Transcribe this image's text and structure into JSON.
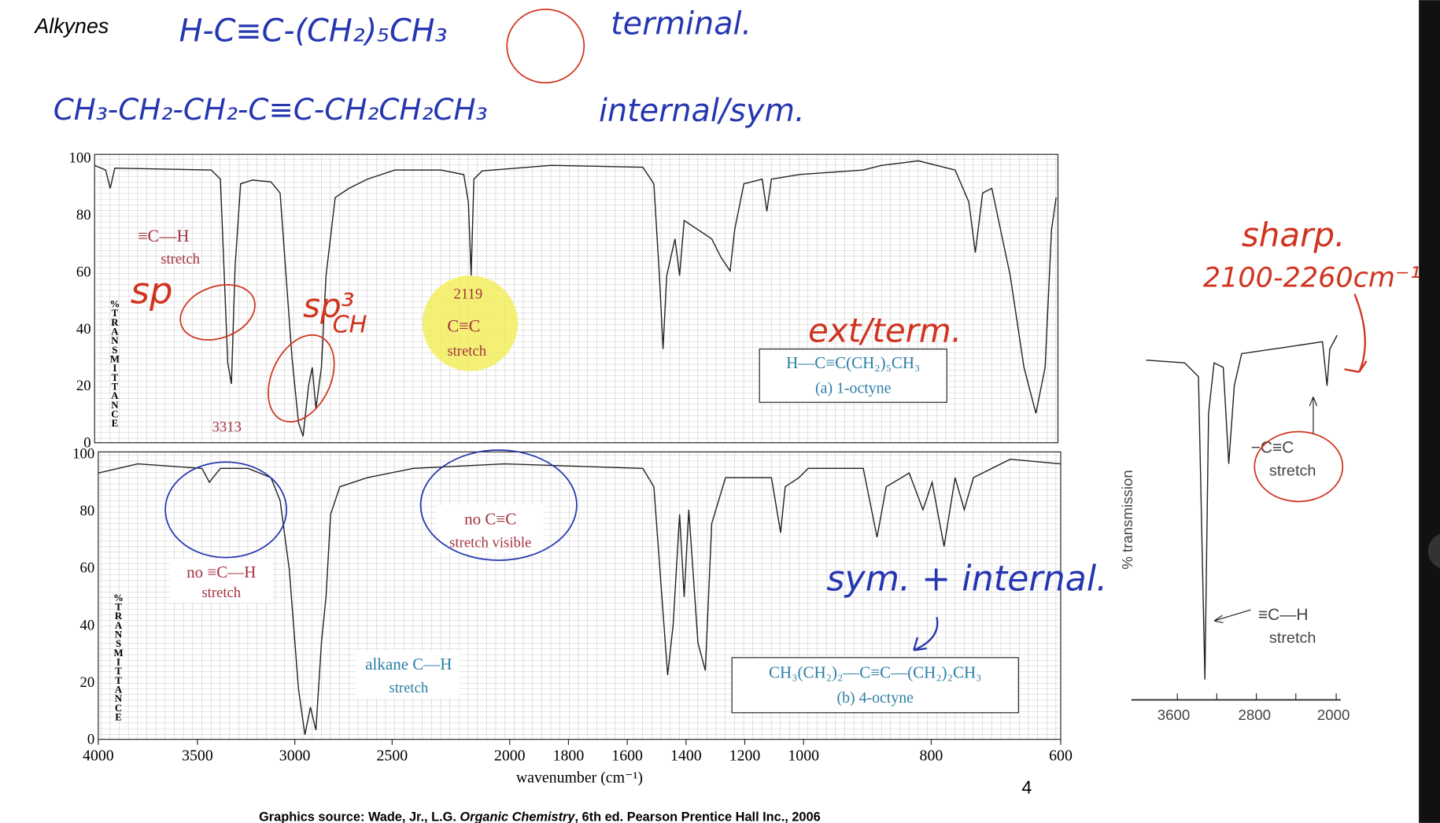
{
  "header": {
    "title": "Alkynes",
    "page_number": "4"
  },
  "notes": {
    "terminal_formula": "H-C≡C-(CH₂)₅CH₃",
    "terminal_word": "terminal.",
    "internal_formula": "CH₃-CH₂-CH₂-C≡C-CH₂CH₂CH₃",
    "internal_word": "internal/sym.",
    "sp": "sp",
    "sp3": "sp³",
    "ch": "CH",
    "ext_term": "ext/term.",
    "sym_internal": "sym. + internal."
  },
  "spectrum_a": {
    "y_axis_label": "%TRANSMITTANCE",
    "yticks": [
      "100",
      "80",
      "60",
      "40",
      "20",
      "0"
    ],
    "ch_stretch": [
      "≡C—H",
      "stretch"
    ],
    "peak_3313": "3313",
    "cc_stretch": [
      "2119",
      "C≡C",
      "stretch"
    ],
    "compound": [
      "H—C≡C(CH₂)₅CH₃",
      "(a) 1-octyne"
    ]
  },
  "spectrum_b": {
    "y_axis_label": "%TRANSMITTANCE",
    "yticks": [
      "100",
      "80",
      "60",
      "40",
      "20",
      "0"
    ],
    "no_ch": [
      "no ≡C—H",
      "stretch"
    ],
    "no_cc": [
      "no C≡C",
      "stretch visible"
    ],
    "alkane": [
      "alkane C—H",
      "stretch"
    ],
    "compound": [
      "CH₃(CH₂)₂—C≡C—(CH₂)₂CH₃",
      "(b) 4-octyne"
    ]
  },
  "x_axis": {
    "ticks": [
      "4000",
      "3500",
      "3000",
      "2500",
      "2000",
      "1800",
      "1600",
      "1400",
      "1200",
      "1000",
      "800",
      "600"
    ],
    "label": "wavenumber (cm⁻¹)"
  },
  "inset": {
    "sharp": "sharp.",
    "range": "2100-2260cm⁻¹",
    "y_label": "% transmission",
    "cc": [
      "−C≡C",
      "stretch"
    ],
    "ch": [
      "≡C—H",
      "stretch"
    ],
    "ticks": [
      "3600",
      "2800",
      "2000"
    ]
  },
  "footer": {
    "source": "Graphics source: Wade, Jr., L.G. ",
    "book": "Organic Chemistry",
    "rest": ", 6th ed. Pearson Prentice Hall Inc., 2006"
  }
}
